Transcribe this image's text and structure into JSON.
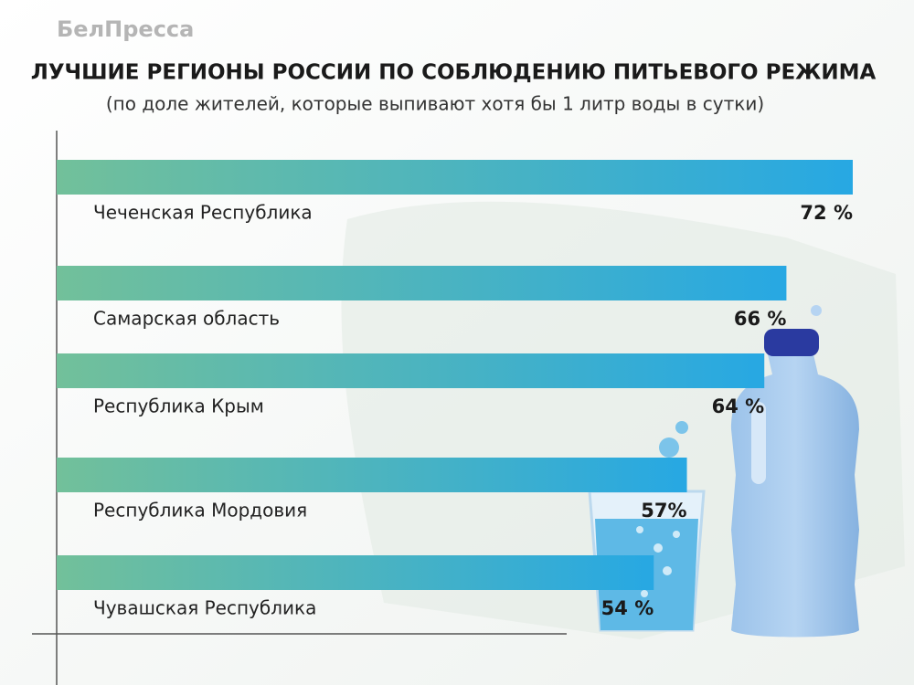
{
  "source": "БелПресса",
  "chart_data": {
    "type": "bar",
    "orientation": "horizontal",
    "title": "ЛУЧШИЕ РЕГИОНЫ РОССИИ ПО СОБЛЮДЕНИЮ ПИТЬЕВОГО РЕЖИМА",
    "subtitle": "(по доле жителей, которые выпивают хотя бы 1 литр воды в сутки)",
    "categories": [
      "Чеченская Республика",
      "Самарская область",
      "Республика Крым",
      "Республика Мордовия",
      "Чувашская Республика"
    ],
    "values": [
      72,
      66,
      64,
      57,
      54
    ],
    "value_labels": [
      "72 %",
      "66 %",
      "64 %",
      "57%",
      "54 %"
    ],
    "color": [
      "#72c09a",
      "#27a8e3"
    ]
  }
}
